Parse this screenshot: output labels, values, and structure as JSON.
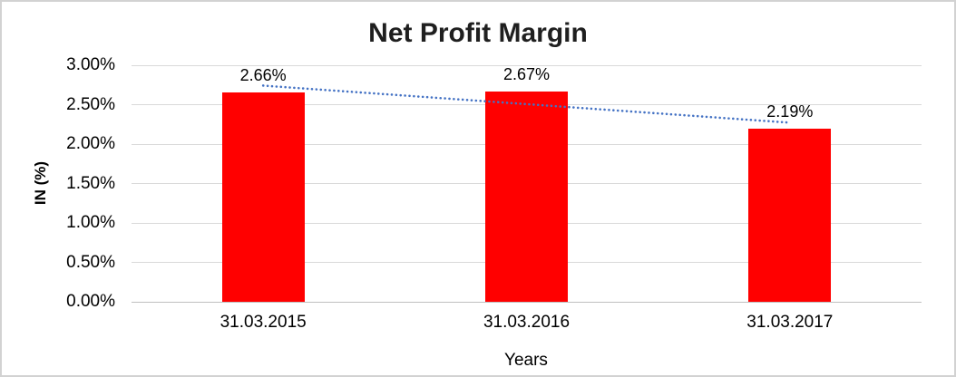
{
  "chart_data": {
    "type": "bar",
    "title": "Net Profit Margin",
    "xlabel": "Years",
    "ylabel": "IN (%)",
    "categories": [
      "31.03.2015",
      "31.03.2016",
      "31.03.2017"
    ],
    "values": [
      2.66,
      2.67,
      2.19
    ],
    "value_labels": [
      "2.66%",
      "2.67%",
      "2.19%"
    ],
    "ylim": [
      0,
      3.0
    ],
    "ytick_step": 0.5,
    "yticks": [
      "0.00%",
      "0.50%",
      "1.00%",
      "1.50%",
      "2.00%",
      "2.50%",
      "3.00%"
    ],
    "grid": true,
    "legend": false,
    "trendline": {
      "type": "linear",
      "style": "dotted"
    },
    "colors": {
      "bar": "#ff0000",
      "trendline": "#4472c4",
      "gridline": "#d9d9d9",
      "axis_line": "#c0c0c0",
      "text": "#000000",
      "title_text": "#1f1f1f",
      "border": "#d2d2d2",
      "background": "#ffffff"
    }
  }
}
